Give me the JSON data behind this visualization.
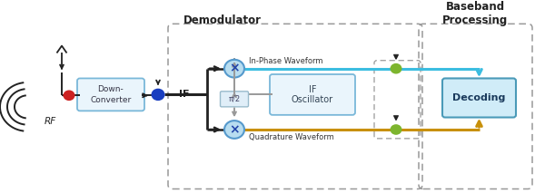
{
  "bg_color": "#ffffff",
  "demodulator_label": "Demodulator",
  "baseband_label": "Baseband\nProcessing",
  "down_converter_label": "Down-\nConverter",
  "if_oscillator_label": "IF\nOscillator",
  "decoding_label": "Decoding",
  "pi2_label": "π/2",
  "rf_label": "RF",
  "if_label": "IF",
  "in_phase_label": "In-Phase Waveform",
  "quadrature_label": "Quadrature Waveform",
  "box_fill_light": "#d8eef8",
  "box_fill_top": "#eaf5fc",
  "box_stroke": "#7ab8d9",
  "dashed_box_color": "#999999",
  "black": "#222222",
  "gray_arrow": "#999999",
  "blue_line_color": "#3bbde0",
  "orange_line_color": "#c8900a",
  "green_dot_color": "#7db52e",
  "red_dot_color": "#cc2222",
  "blue_dot_color": "#1a3ec0",
  "x_circle_fill": "#b8ddf0",
  "x_circle_stroke": "#5599cc",
  "pi2_box_fill": "#e0eef8",
  "pi2_box_stroke": "#99bbcc",
  "decoding_fill_top": "#d0ecf8",
  "decoding_fill_bot": "#6bbedd",
  "decoding_stroke": "#4a9ab8",
  "decoding_text": "#1a3a5c"
}
